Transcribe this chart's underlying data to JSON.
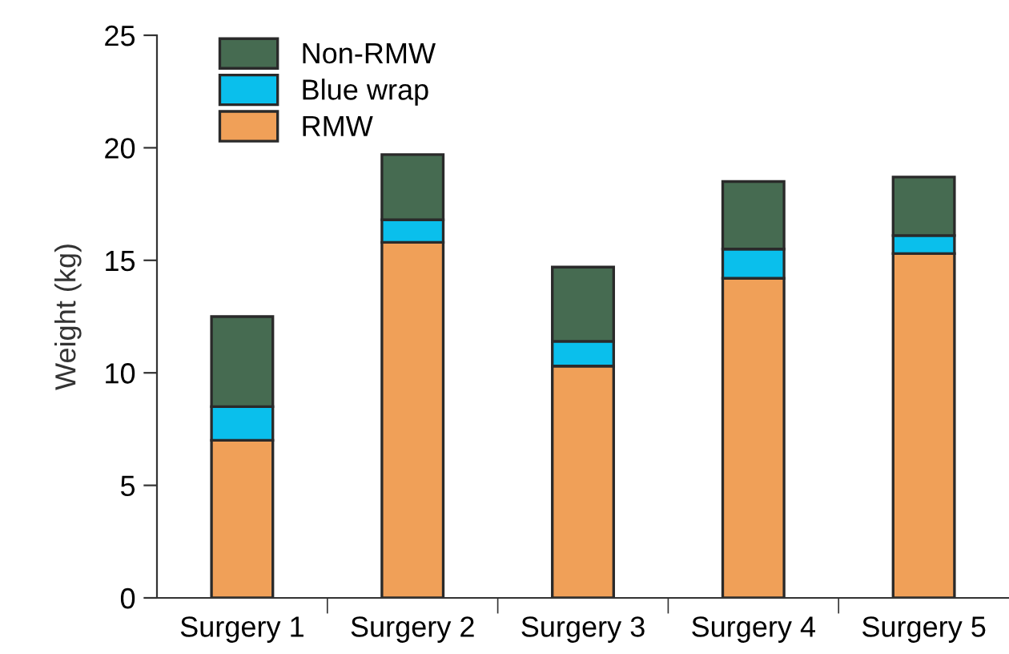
{
  "chart_data": {
    "type": "bar",
    "stacked": true,
    "ylabel": "Weight (kg)",
    "categories": [
      "Surgery 1",
      "Surgery 2",
      "Surgery 3",
      "Surgery 4",
      "Surgery 5"
    ],
    "series": [
      {
        "name": "RMW",
        "color": "#f0a058",
        "values": [
          7.0,
          15.8,
          10.3,
          14.2,
          15.3
        ]
      },
      {
        "name": "Blue wrap",
        "color": "#0abfec",
        "values": [
          1.5,
          1.0,
          1.1,
          1.3,
          0.8
        ]
      },
      {
        "name": "Non-RMW",
        "color": "#466b51",
        "values": [
          4.0,
          2.9,
          3.3,
          3.0,
          2.6
        ]
      }
    ],
    "ylim": [
      0,
      25
    ],
    "yticks": [
      0,
      5,
      10,
      15,
      20,
      25
    ],
    "grid": false,
    "legend": "top left"
  }
}
